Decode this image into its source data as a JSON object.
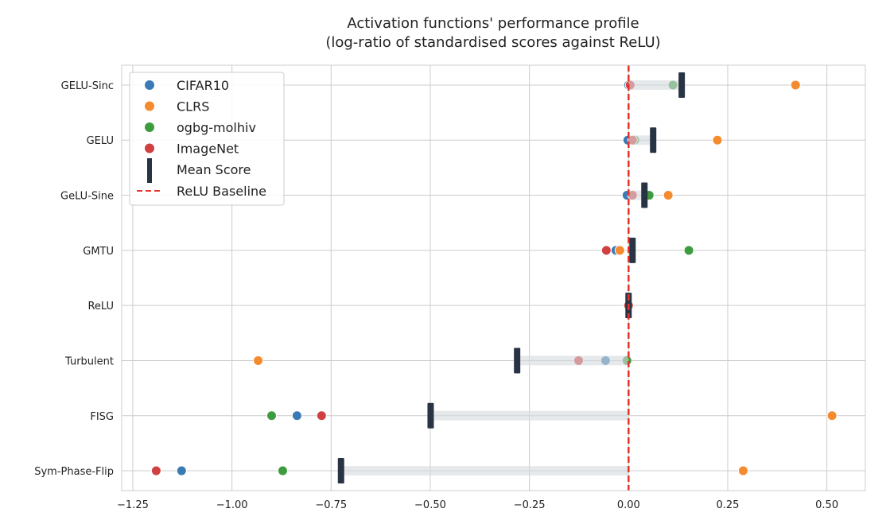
{
  "chart_data": {
    "type": "scatter",
    "title": "Activation functions' performance profile",
    "subtitle": "(log-ratio of standardised scores against ReLU)",
    "xlabel": "",
    "ylabel": "",
    "xlim": [
      -1.278,
      0.597
    ],
    "xticks": [
      -1.25,
      -1.0,
      -0.75,
      -0.5,
      -0.25,
      0.0,
      0.25,
      0.5
    ],
    "xtick_labels": [
      "−1.25",
      "−1.00",
      "−0.75",
      "−0.50",
      "−0.25",
      "0.00",
      "0.25",
      "0.50"
    ],
    "categories": [
      "GELU-Sinc",
      "GELU",
      "GeLU-Sine",
      "GMTU",
      "ReLU",
      "Turbulent",
      "FISG",
      "Sym-Phase-Flip"
    ],
    "series": [
      {
        "name": "CIFAR10",
        "color": "#3b7bb5",
        "values": [
          0.0,
          -0.002,
          -0.004,
          -0.032,
          0.0,
          -0.058,
          -0.836,
          -1.127
        ]
      },
      {
        "name": "CLRS",
        "color": "#f58a2e",
        "values": [
          0.421,
          0.224,
          0.1,
          -0.022,
          0.0,
          -0.934,
          0.513,
          0.289
        ]
      },
      {
        "name": "ogbg-molhiv",
        "color": "#3d9c3d",
        "values": [
          0.112,
          0.016,
          0.052,
          0.152,
          0.0,
          -0.004,
          -0.9,
          -0.872
        ]
      },
      {
        "name": "ImageNet",
        "color": "#d14040",
        "values": [
          0.004,
          0.01,
          0.01,
          -0.056,
          0.0,
          -0.126,
          -0.774,
          -1.191
        ]
      }
    ],
    "mean_score": {
      "name": "Mean Score",
      "color": "#283344",
      "values": [
        0.134,
        0.062,
        0.04,
        0.01,
        0.0,
        -0.281,
        -0.499,
        -0.725
      ]
    },
    "baseline": {
      "name": "ReLU Baseline",
      "value": 0.0,
      "color": "#e8332a"
    },
    "grid": true,
    "legend_placement": "top-left"
  }
}
